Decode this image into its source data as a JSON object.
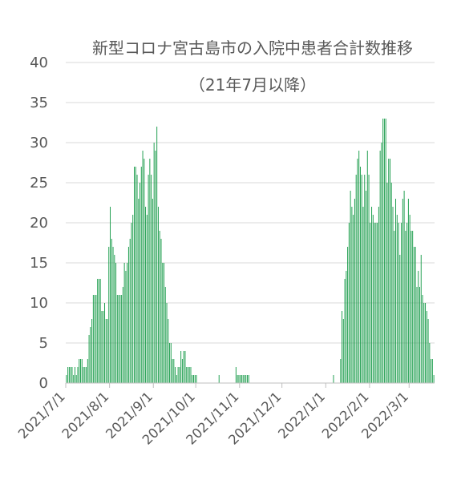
{
  "chart_data": {
    "type": "bar",
    "title": "新型コロナ宮古島市の入院中患者合計数推移",
    "subtitle": "（21年7月以降）",
    "xlabel": "",
    "ylabel": "",
    "ylim": [
      0,
      40
    ],
    "yticks": [
      "0",
      "5",
      "10",
      "15",
      "20",
      "25",
      "30",
      "35",
      "40"
    ],
    "xtick_labels": [
      "2021/7/1",
      "2021/8/1",
      "2021/9/1",
      "2021/10/1",
      "2021/11/1",
      "2021/12/1",
      "2022/1/1",
      "2022/2/1",
      "2022/3/1"
    ],
    "grid": "horizontal",
    "bar_color": "#1e9e4e",
    "start_date": "2021-07-01",
    "values": [
      1,
      2,
      2,
      2,
      2,
      1,
      2,
      1,
      2,
      3,
      3,
      3,
      2,
      2,
      2,
      3,
      6,
      7,
      8,
      11,
      11,
      11,
      13,
      13,
      13,
      9,
      9,
      10,
      8,
      8,
      17,
      22,
      18,
      17,
      16,
      15,
      11,
      11,
      11,
      11,
      12,
      15,
      14,
      15,
      17,
      18,
      20,
      21,
      27,
      27,
      26,
      23,
      25,
      27,
      29,
      28,
      22,
      21,
      26,
      28,
      26,
      23,
      30,
      29,
      32,
      22,
      19,
      18,
      15,
      15,
      12,
      10,
      8,
      5,
      5,
      3,
      3,
      2,
      1,
      2,
      2,
      4,
      3,
      4,
      4,
      2,
      2,
      2,
      2,
      1,
      1,
      1,
      1,
      0,
      0,
      0,
      0,
      0,
      0,
      0,
      0,
      0,
      0,
      0,
      0,
      0,
      0,
      0,
      1,
      0,
      0,
      0,
      0,
      0,
      0,
      0,
      0,
      0,
      0,
      0,
      2,
      1,
      1,
      1,
      1,
      1,
      1,
      1,
      1,
      1,
      0,
      0,
      0,
      0,
      0,
      0,
      0,
      0,
      0,
      0,
      0,
      0,
      0,
      0,
      0,
      0,
      0,
      0,
      0,
      0,
      0,
      0,
      0,
      0,
      0,
      0,
      0,
      0,
      0,
      0,
      0,
      0,
      0,
      0,
      0,
      0,
      0,
      0,
      0,
      0,
      0,
      0,
      0,
      0,
      0,
      0,
      0,
      0,
      0,
      0,
      0,
      0,
      0,
      0,
      0,
      0,
      0,
      0,
      0,
      1,
      0,
      0,
      0,
      0,
      3,
      9,
      8,
      13,
      14,
      17,
      20,
      24,
      22,
      21,
      23,
      26,
      28,
      29,
      27,
      26,
      22,
      26,
      24,
      29,
      26,
      20,
      22,
      21,
      20,
      20,
      20,
      22,
      29,
      30,
      33,
      33,
      33,
      25,
      28,
      28,
      25,
      22,
      19,
      23,
      21,
      20,
      16,
      20,
      23,
      24,
      19,
      20,
      23,
      21,
      19,
      19,
      17,
      17,
      12,
      14,
      12,
      16,
      11,
      10,
      10,
      9,
      8,
      5,
      3,
      3,
      1
    ],
    "bar_every_day": true
  }
}
